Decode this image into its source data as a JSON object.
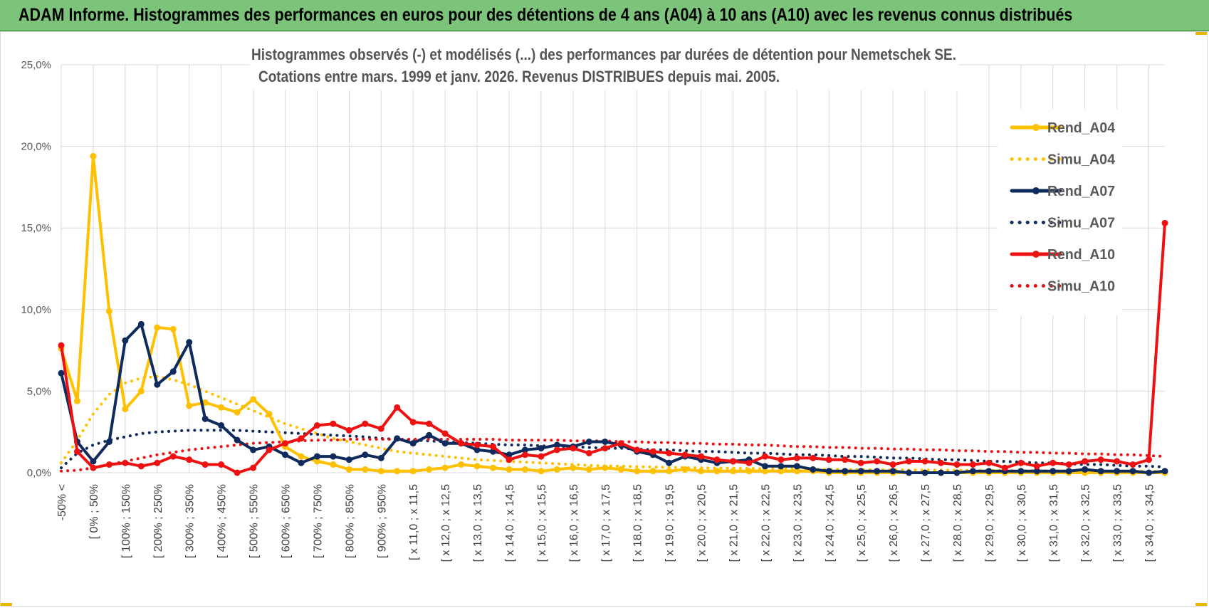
{
  "banner": {
    "title": "ADAM Informe. Histogrammes des performances en euros pour des détentions de 4 ans (A04) à 10 ans (A10) avec les revenus connus distribués"
  },
  "colors": {
    "banner_bg": "#7cc47a",
    "rend_a04": "#ffc000",
    "rend_a07": "#0f2a5c",
    "rend_a10": "#ee1111",
    "grid": "#d9d9d9"
  },
  "chart_data": {
    "type": "line",
    "title_lines": [
      "Histogrammes observés (-) et modélisés (...) des performances par durées de détention pour Nemetschek SE.",
      "Cotations entre mars. 1999 et janv. 2026. Revenus DISTRIBUES depuis mai. 2005."
    ],
    "y_ticks": [
      "0,0%",
      "5,0%",
      "10,0%",
      "15,0%",
      "20,0%",
      "25,0%"
    ],
    "ylim": [
      0,
      25
    ],
    "grid": true,
    "legend_position": "right",
    "x_tick_labels": [
      "-50% <",
      "[ 0% ; 50%",
      "[ 100% ; 150%",
      "[ 200% ; 250%",
      "[ 300% ; 350%",
      "[ 400% ; 450%",
      "[ 500% ; 550%",
      "[ 600% ; 650%",
      "[ 700% ; 750%",
      "[ 800% ; 850%",
      "[ 900% ; 950%",
      "[ x 11,0 ; x 11,5",
      "[ x 12,0 ; x 12,5",
      "[ x 13,0 ; x 13,5",
      "[ x 14,0 ; x 14,5",
      "[ x 15,0 ; x 15,5",
      "[ x 16,0 ; x 16,5",
      "[ x 17,0 ; x 17,5",
      "[ x 18,0 ; x 18,5",
      "[ x 19,0 ; x 19,5",
      "[ x 20,0 ; x 20,5",
      "[ x 21,0 ; x 21,5",
      "[ x 22,0 ; x 22,5",
      "[ x 23,0 ; x 23,5",
      "[ x 24,0 ; x 24,5",
      "[ x 25,0 ; x 25,5",
      "[ x 26,0 ; x 26,5",
      "[ x 27,0 ; x 27,5",
      "[ x 28,0 ; x 28,5",
      "[ x 29,0 ; x 29,5",
      "[ x 30,0 ; x 30,5",
      "[ x 31,0 ; x 31,5",
      "[ x 32,0 ; x 32,5",
      "[ x 33,0 ; x 33,5",
      "[ x 34,0 ; x 34,5"
    ],
    "n_points": 70,
    "series": [
      {
        "name": "Rend_A04",
        "style": "solid",
        "color": "#ffc000",
        "markers": true,
        "values": [
          7.6,
          4.4,
          19.4,
          9.9,
          3.9,
          5.0,
          8.9,
          8.8,
          4.1,
          4.3,
          4.0,
          3.7,
          4.5,
          3.6,
          1.6,
          1.0,
          0.7,
          0.5,
          0.2,
          0.2,
          0.1,
          0.1,
          0.1,
          0.2,
          0.3,
          0.5,
          0.4,
          0.3,
          0.2,
          0.2,
          0.1,
          0.2,
          0.3,
          0.2,
          0.3,
          0.2,
          0.1,
          0.1,
          0.1,
          0.2,
          0.1,
          0.1,
          0.1,
          0.1,
          0.1,
          0.1,
          0.1,
          0.1,
          0.0,
          0.0,
          0.0,
          0.0,
          0.0,
          0.0,
          0.0,
          0.0,
          0.0,
          0.0,
          0.0,
          0.0,
          0.0,
          0.0,
          0.0,
          0.0,
          0.0,
          0.0,
          0.0,
          0.0,
          0.0,
          0.0
        ]
      },
      {
        "name": "Simu_A04",
        "style": "dotted",
        "color": "#ffc000",
        "markers": false,
        "values": [
          0.6,
          2.0,
          3.6,
          4.8,
          5.5,
          5.8,
          5.9,
          5.7,
          5.4,
          5.0,
          4.6,
          4.2,
          3.8,
          3.4,
          3.0,
          2.7,
          2.4,
          2.1,
          1.9,
          1.7,
          1.5,
          1.3,
          1.2,
          1.1,
          1.0,
          0.9,
          0.8,
          0.75,
          0.7,
          0.65,
          0.6,
          0.55,
          0.5,
          0.45,
          0.42,
          0.4,
          0.37,
          0.35,
          0.33,
          0.31,
          0.3,
          0.28,
          0.27,
          0.26,
          0.25,
          0.24,
          0.23,
          0.22,
          0.21,
          0.2,
          0.19,
          0.18,
          0.18,
          0.17,
          0.16,
          0.16,
          0.15,
          0.15,
          0.14,
          0.14,
          0.13,
          0.13,
          0.12,
          0.12,
          0.12,
          0.11,
          0.11,
          0.11,
          0.1,
          0.1
        ]
      },
      {
        "name": "Rend_A07",
        "style": "solid",
        "color": "#0f2a5c",
        "markers": true,
        "values": [
          6.1,
          1.9,
          0.7,
          1.9,
          8.1,
          9.1,
          5.4,
          6.2,
          8.0,
          3.3,
          2.9,
          2.0,
          1.4,
          1.6,
          1.1,
          0.6,
          1.0,
          1.0,
          0.8,
          1.1,
          0.9,
          2.1,
          1.8,
          2.3,
          1.8,
          1.8,
          1.4,
          1.3,
          1.1,
          1.4,
          1.5,
          1.7,
          1.6,
          1.9,
          1.9,
          1.7,
          1.3,
          1.1,
          0.6,
          1.0,
          0.8,
          0.6,
          0.7,
          0.8,
          0.4,
          0.4,
          0.4,
          0.2,
          0.1,
          0.1,
          0.1,
          0.1,
          0.1,
          0.0,
          0.0,
          0.0,
          0.0,
          0.1,
          0.1,
          0.1,
          0.1,
          0.1,
          0.1,
          0.1,
          0.2,
          0.1,
          0.1,
          0.1,
          0.0,
          0.1
        ]
      },
      {
        "name": "Simu_A07",
        "style": "dotted",
        "color": "#0f2a5c",
        "markers": false,
        "values": [
          0.3,
          1.2,
          1.7,
          2.0,
          2.2,
          2.4,
          2.5,
          2.55,
          2.6,
          2.6,
          2.6,
          2.6,
          2.55,
          2.5,
          2.45,
          2.4,
          2.35,
          2.3,
          2.25,
          2.2,
          2.1,
          2.05,
          2.0,
          1.95,
          1.9,
          1.85,
          1.8,
          1.75,
          1.7,
          1.7,
          1.65,
          1.6,
          1.6,
          1.55,
          1.5,
          1.5,
          1.45,
          1.4,
          1.4,
          1.35,
          1.3,
          1.3,
          1.25,
          1.2,
          1.2,
          1.15,
          1.1,
          1.1,
          1.05,
          1.0,
          1.0,
          0.95,
          0.9,
          0.9,
          0.85,
          0.8,
          0.8,
          0.75,
          0.7,
          0.7,
          0.65,
          0.6,
          0.6,
          0.55,
          0.5,
          0.5,
          0.45,
          0.4,
          0.4,
          0.35
        ]
      },
      {
        "name": "Rend_A10",
        "style": "solid",
        "color": "#ee1111",
        "markers": true,
        "values": [
          7.8,
          1.3,
          0.3,
          0.5,
          0.6,
          0.4,
          0.6,
          1.0,
          0.8,
          0.5,
          0.5,
          0.0,
          0.3,
          1.4,
          1.8,
          2.1,
          2.9,
          3.0,
          2.6,
          3.0,
          2.7,
          4.0,
          3.1,
          3.0,
          2.4,
          1.8,
          1.7,
          1.6,
          0.8,
          1.1,
          1.0,
          1.4,
          1.5,
          1.2,
          1.5,
          1.8,
          1.4,
          1.3,
          1.2,
          1.1,
          1.0,
          0.8,
          0.7,
          0.6,
          1.0,
          0.8,
          0.9,
          0.9,
          0.8,
          0.8,
          0.6,
          0.7,
          0.5,
          0.7,
          0.7,
          0.6,
          0.5,
          0.5,
          0.6,
          0.3,
          0.6,
          0.4,
          0.6,
          0.5,
          0.7,
          0.8,
          0.7,
          0.5,
          0.8,
          15.3
        ]
      },
      {
        "name": "Simu_A10",
        "style": "dotted",
        "color": "#ee1111",
        "markers": false,
        "values": [
          0.1,
          0.15,
          0.3,
          0.5,
          0.7,
          0.9,
          1.1,
          1.25,
          1.4,
          1.5,
          1.6,
          1.7,
          1.8,
          1.85,
          1.9,
          1.95,
          2.0,
          2.0,
          2.05,
          2.05,
          2.05,
          2.05,
          2.05,
          2.05,
          2.05,
          2.05,
          2.05,
          2.05,
          2.0,
          2.0,
          2.0,
          2.0,
          1.95,
          1.95,
          1.95,
          1.9,
          1.9,
          1.85,
          1.85,
          1.8,
          1.8,
          1.75,
          1.75,
          1.7,
          1.7,
          1.65,
          1.6,
          1.6,
          1.55,
          1.55,
          1.5,
          1.5,
          1.45,
          1.45,
          1.4,
          1.4,
          1.35,
          1.35,
          1.3,
          1.3,
          1.25,
          1.25,
          1.2,
          1.2,
          1.15,
          1.15,
          1.1,
          1.1,
          1.05,
          1.0
        ]
      }
    ]
  }
}
